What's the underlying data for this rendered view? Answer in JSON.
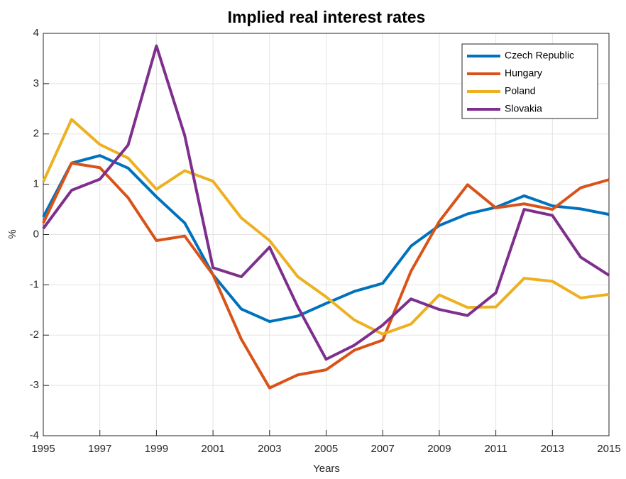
{
  "chart_data": {
    "type": "line",
    "title": "Implied real interest rates",
    "x_label": "Years",
    "y_label": "%",
    "x": [
      1995,
      1996,
      1997,
      1998,
      1999,
      2000,
      2001,
      2002,
      2003,
      2004,
      2005,
      2006,
      2007,
      2008,
      2009,
      2010,
      2011,
      2012,
      2013,
      2014,
      2015
    ],
    "xlim": [
      1995,
      2015
    ],
    "xticks": [
      1995,
      1997,
      1999,
      2001,
      2003,
      2005,
      2007,
      2009,
      2011,
      2013,
      2015
    ],
    "ylim": [
      -4,
      4
    ],
    "yticks": [
      -4,
      -3,
      -2,
      -1,
      0,
      1,
      2,
      3,
      4
    ],
    "grid": true,
    "legend": "northeast",
    "series": [
      {
        "name": "Czech Republic",
        "color": "#0072BD",
        "values": [
          0.35,
          1.42,
          1.57,
          1.32,
          0.75,
          0.23,
          -0.8,
          -1.48,
          -1.73,
          -1.62,
          -1.37,
          -1.13,
          -0.97,
          -0.23,
          0.18,
          0.41,
          0.54,
          0.77,
          0.57,
          0.51,
          0.4
        ]
      },
      {
        "name": "Hungary",
        "color": "#D95319",
        "values": [
          0.23,
          1.42,
          1.33,
          0.73,
          -0.12,
          -0.03,
          -0.8,
          -2.08,
          -3.05,
          -2.79,
          -2.69,
          -2.3,
          -2.1,
          -0.73,
          0.26,
          0.99,
          0.53,
          0.61,
          0.5,
          0.93,
          1.09
        ]
      },
      {
        "name": "Poland",
        "color": "#EDB120",
        "values": [
          1.05,
          2.29,
          1.79,
          1.52,
          0.9,
          1.27,
          1.06,
          0.33,
          -0.12,
          -0.84,
          -1.24,
          -1.7,
          -1.98,
          -1.78,
          -1.2,
          -1.45,
          -1.44,
          -0.87,
          -0.93,
          -1.26,
          -1.19
        ]
      },
      {
        "name": "Slovakia",
        "color": "#7E2F8E",
        "values": [
          0.12,
          0.88,
          1.1,
          1.78,
          3.75,
          1.97,
          -0.66,
          -0.84,
          -0.25,
          -1.44,
          -2.48,
          -2.2,
          -1.8,
          -1.28,
          -1.49,
          -1.61,
          -1.16,
          0.5,
          0.38,
          -0.45,
          -0.81
        ]
      }
    ]
  }
}
